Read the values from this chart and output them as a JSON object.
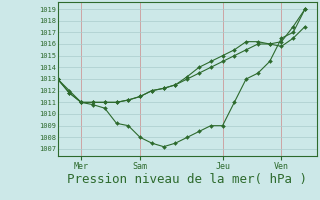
{
  "bg_color": "#cce8e8",
  "grid_color_h": "#aacccc",
  "grid_color_v": "#cc9999",
  "line_color": "#2d6a2d",
  "xlabel": "Pression niveau de la mer( hPa )",
  "xlabel_fontsize": 9,
  "yticks": [
    1007,
    1008,
    1009,
    1010,
    1011,
    1012,
    1013,
    1014,
    1015,
    1016,
    1017,
    1018,
    1019
  ],
  "ylim": [
    1006.4,
    1019.6
  ],
  "xlim": [
    0,
    22
  ],
  "xtick_labels": [
    "Mer",
    "Sam",
    "Jeu",
    "Ven"
  ],
  "xtick_positions": [
    2,
    7,
    14,
    19
  ],
  "vline_positions": [
    2,
    7,
    14,
    19
  ],
  "line1_x": [
    0,
    1,
    2,
    3,
    4,
    5,
    6,
    7,
    8,
    9,
    10,
    11,
    12,
    13,
    14,
    15,
    16,
    17,
    18,
    19,
    20,
    21
  ],
  "line1_y": [
    1013.0,
    1012.0,
    1011.0,
    1010.8,
    1010.5,
    1009.2,
    1009.0,
    1008.0,
    1007.5,
    1007.2,
    1007.5,
    1008.0,
    1008.5,
    1009.0,
    1009.0,
    1011.0,
    1013.0,
    1013.5,
    1014.5,
    1016.5,
    1017.0,
    1019.0
  ],
  "line2_x": [
    0,
    1,
    2,
    3,
    4,
    5,
    6,
    7,
    8,
    9,
    10,
    11,
    12,
    13,
    14,
    15,
    16,
    17,
    18,
    19,
    20,
    21
  ],
  "line2_y": [
    1013.0,
    1011.8,
    1011.0,
    1011.0,
    1011.0,
    1011.0,
    1011.2,
    1011.5,
    1012.0,
    1012.2,
    1012.5,
    1013.0,
    1013.5,
    1014.0,
    1014.5,
    1015.0,
    1015.5,
    1016.0,
    1016.0,
    1016.2,
    1017.5,
    1019.0
  ],
  "line3_x": [
    0,
    1,
    2,
    3,
    4,
    5,
    6,
    7,
    8,
    9,
    10,
    11,
    12,
    13,
    14,
    15,
    16,
    17,
    18,
    19,
    20,
    21
  ],
  "line3_y": [
    1013.0,
    1011.8,
    1011.0,
    1011.0,
    1011.0,
    1011.0,
    1011.2,
    1011.5,
    1012.0,
    1012.2,
    1012.5,
    1013.2,
    1014.0,
    1014.5,
    1015.0,
    1015.5,
    1016.2,
    1016.2,
    1016.0,
    1015.8,
    1016.5,
    1017.5
  ]
}
